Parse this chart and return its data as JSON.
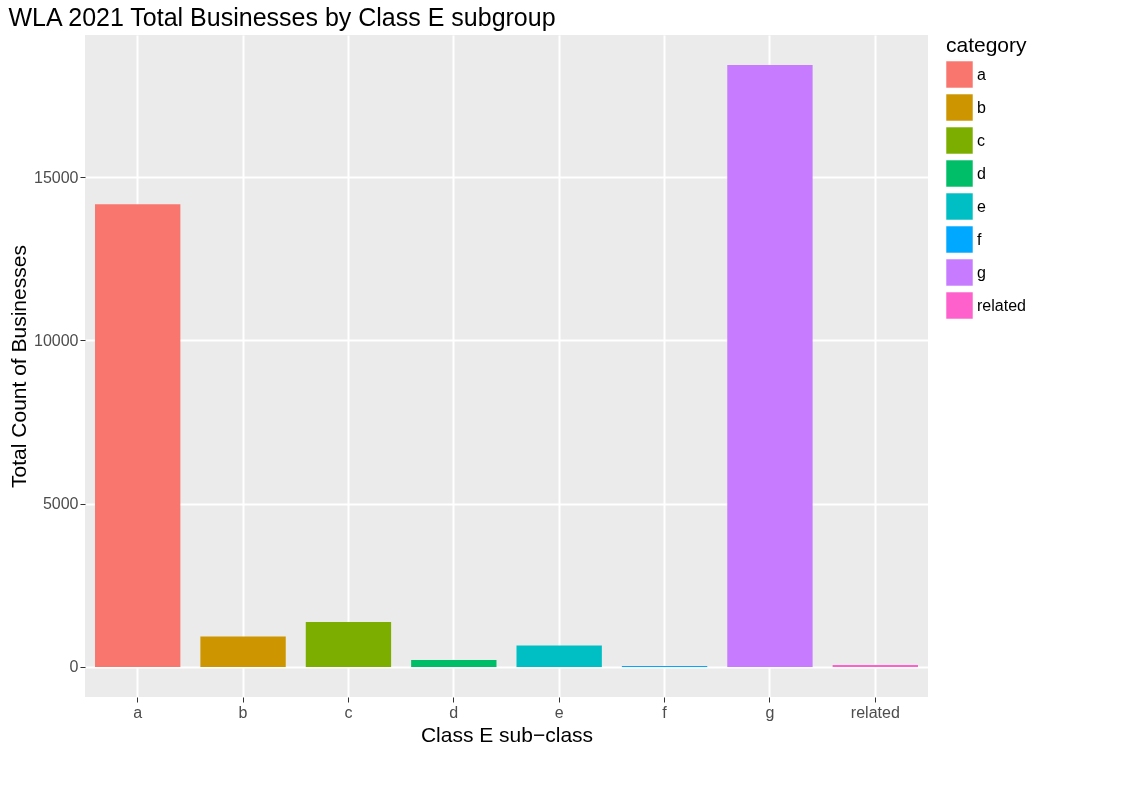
{
  "chart_data": {
    "type": "bar",
    "title": "WLA 2021 Total Businesses by Class E subgroup",
    "xlabel": "Class E sub−class",
    "ylabel": "Total Count of Businesses",
    "legend_title": "category",
    "categories": [
      "a",
      "b",
      "c",
      "d",
      "e",
      "f",
      "g",
      "related"
    ],
    "series": [
      {
        "name": "a",
        "color": "#f8766d",
        "values": [
          14170,
          null,
          null,
          null,
          null,
          null,
          null,
          null
        ]
      },
      {
        "name": "b",
        "color": "#cd9600",
        "values": [
          null,
          930,
          null,
          null,
          null,
          null,
          null,
          null
        ]
      },
      {
        "name": "c",
        "color": "#7cae00",
        "values": [
          null,
          null,
          1380,
          null,
          null,
          null,
          null,
          null
        ]
      },
      {
        "name": "d",
        "color": "#00be67",
        "values": [
          null,
          null,
          null,
          210,
          null,
          null,
          null,
          null
        ]
      },
      {
        "name": "e",
        "color": "#00bfc4",
        "values": [
          null,
          null,
          null,
          null,
          660,
          null,
          null,
          null
        ]
      },
      {
        "name": "f",
        "color": "#00a9ff",
        "values": [
          null,
          null,
          null,
          null,
          null,
          30,
          null,
          null
        ]
      },
      {
        "name": "g",
        "color": "#c77cff",
        "values": [
          null,
          null,
          null,
          null,
          null,
          null,
          18430,
          null
        ]
      },
      {
        "name": "related",
        "color": "#ff61cc",
        "values": [
          null,
          null,
          null,
          null,
          null,
          null,
          null,
          60
        ]
      }
    ],
    "ylim": [
      -920,
      19350
    ],
    "yticks": [
      0,
      5000,
      10000,
      15000
    ],
    "grid": true,
    "legend": "right"
  }
}
